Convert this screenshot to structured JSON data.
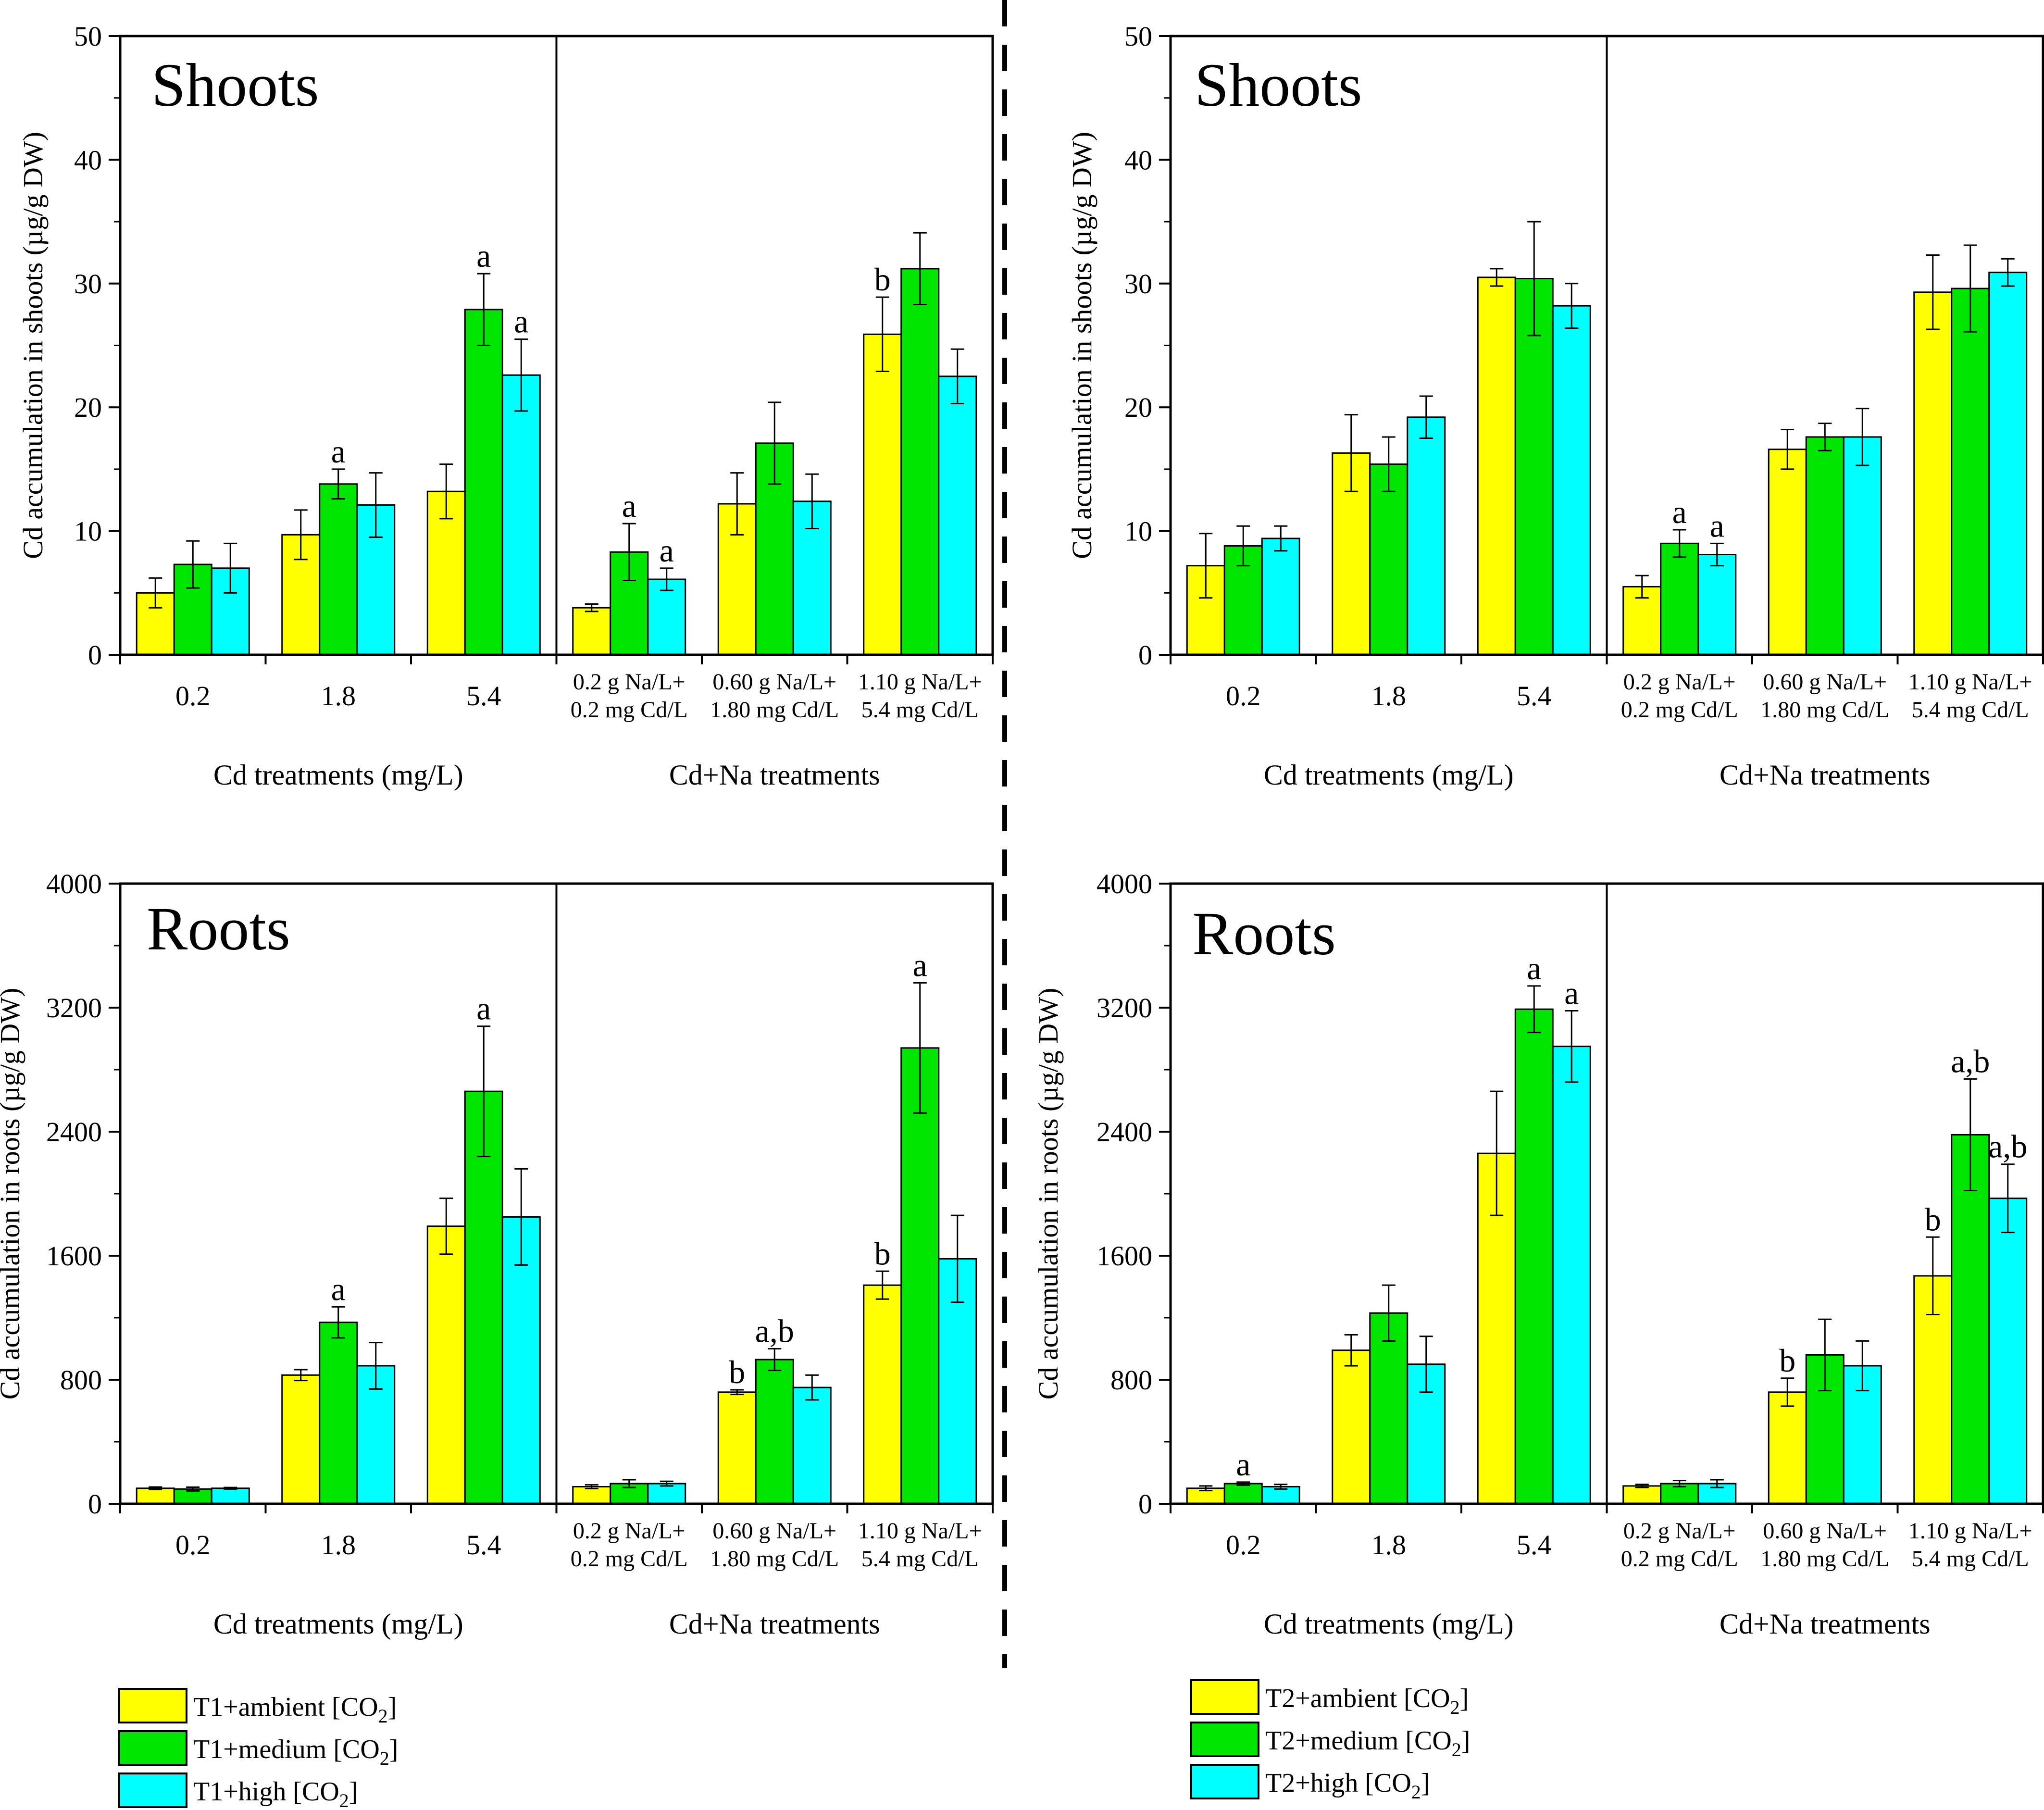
{
  "chart_data": [
    {
      "type": "bar",
      "panel": "T1 shoots",
      "title": "Shoots",
      "ylabel": "Cd accumulation in shoots (µg/g DW)",
      "ylim": [
        0,
        50
      ],
      "yticks": [
        0,
        10,
        20,
        30,
        40,
        50
      ],
      "groups": [
        {
          "label": "Cd treatments (mg/L)",
          "categories": [
            [
              "0.2"
            ],
            [
              "1.8"
            ],
            [
              "5.4"
            ]
          ]
        },
        {
          "label": "Cd+Na treatments",
          "categories": [
            [
              "0.2 g Na/L+",
              "0.2 mg Cd/L"
            ],
            [
              "0.60 g Na/L+",
              "1.80 mg Cd/L"
            ],
            [
              "1.10 g Na/L+",
              "5.4 mg Cd/L"
            ]
          ]
        }
      ],
      "series": [
        {
          "name": "T1+ambient [CO2]",
          "color": "#ffff00",
          "values": [
            5.0,
            9.7,
            13.2,
            3.8,
            12.2,
            25.9
          ],
          "errors": [
            1.2,
            2.0,
            2.2,
            0.3,
            2.5,
            3.0
          ],
          "labels": [
            "",
            "",
            "",
            "",
            "",
            "b"
          ]
        },
        {
          "name": "T1+medium [CO2]",
          "color": "#00e600",
          "values": [
            7.3,
            13.8,
            27.9,
            8.3,
            17.1,
            31.2
          ],
          "errors": [
            1.9,
            1.2,
            2.9,
            2.3,
            3.3,
            2.9
          ],
          "labels": [
            "",
            "a",
            "a",
            "a",
            "",
            ""
          ]
        },
        {
          "name": "T1+high [CO2]",
          "color": "#00ffff",
          "values": [
            7.0,
            12.1,
            22.6,
            6.1,
            12.4,
            22.5
          ],
          "errors": [
            2.0,
            2.6,
            2.9,
            0.9,
            2.2,
            2.2
          ],
          "labels": [
            "",
            "",
            "a",
            "a",
            "",
            ""
          ]
        }
      ]
    },
    {
      "type": "bar",
      "panel": "T2 shoots",
      "title": "Shoots",
      "ylabel": "Cd accumulation in shoots (µg/g DW)",
      "ylim": [
        0,
        50
      ],
      "yticks": [
        0,
        10,
        20,
        30,
        40,
        50
      ],
      "groups": [
        {
          "label": "Cd treatments (mg/L)",
          "categories": [
            [
              "0.2"
            ],
            [
              "1.8"
            ],
            [
              "5.4"
            ]
          ]
        },
        {
          "label": "Cd+Na treatments",
          "categories": [
            [
              "0.2 g Na/L+",
              "0.2 mg Cd/L"
            ],
            [
              "0.60 g Na/L+",
              "1.80 mg Cd/L"
            ],
            [
              "1.10 g Na/L+",
              "5.4 mg Cd/L"
            ]
          ]
        }
      ],
      "series": [
        {
          "name": "T2+ambient [CO2]",
          "color": "#ffff00",
          "values": [
            7.2,
            16.3,
            30.5,
            5.5,
            16.6,
            29.3
          ],
          "errors": [
            2.6,
            3.1,
            0.7,
            0.9,
            1.6,
            3.0
          ],
          "labels": [
            "",
            "",
            "",
            "",
            "",
            ""
          ]
        },
        {
          "name": "T2+medium [CO2]",
          "color": "#00e600",
          "values": [
            8.8,
            15.4,
            30.4,
            9.0,
            17.6,
            29.6
          ],
          "errors": [
            1.6,
            2.2,
            4.6,
            1.1,
            1.1,
            3.5
          ],
          "labels": [
            "",
            "",
            "",
            "a",
            "",
            ""
          ]
        },
        {
          "name": "T2+high [CO2]",
          "color": "#00ffff",
          "values": [
            9.4,
            19.2,
            28.2,
            8.1,
            17.6,
            30.9
          ],
          "errors": [
            1.0,
            1.7,
            1.8,
            0.9,
            2.3,
            1.1
          ],
          "labels": [
            "",
            "",
            "",
            "a",
            "",
            ""
          ]
        }
      ]
    },
    {
      "type": "bar",
      "panel": "T1 roots",
      "title": "Roots",
      "ylabel": "Cd accumulation in roots (µg/g DW)",
      "ylim": [
        0,
        4000
      ],
      "yticks": [
        0,
        800,
        1600,
        2400,
        3200,
        4000
      ],
      "groups": [
        {
          "label": "Cd treatments (mg/L)",
          "categories": [
            [
              "0.2"
            ],
            [
              "1.8"
            ],
            [
              "5.4"
            ]
          ]
        },
        {
          "label": "Cd+Na treatments",
          "categories": [
            [
              "0.2 g Na/L+",
              "0.2 mg Cd/L"
            ],
            [
              "0.60 g Na/L+",
              "1.80 mg Cd/L"
            ],
            [
              "1.10 g Na/L+",
              "5.4 mg Cd/L"
            ]
          ]
        }
      ],
      "series": [
        {
          "name": "T1+ambient [CO2]",
          "color": "#ffff00",
          "values": [
            100,
            830,
            1790,
            110,
            720,
            1410
          ],
          "errors": [
            8,
            35,
            180,
            12,
            15,
            90
          ],
          "labels": [
            "",
            "",
            "",
            "",
            "b",
            "b"
          ]
        },
        {
          "name": "T1+medium [CO2]",
          "color": "#00e600",
          "values": [
            95,
            1170,
            2660,
            130,
            930,
            2940
          ],
          "errors": [
            12,
            100,
            420,
            25,
            70,
            420
          ],
          "labels": [
            "",
            "a",
            "a",
            "",
            "a,b",
            "a"
          ]
        },
        {
          "name": "T1+high [CO2]",
          "color": "#00ffff",
          "values": [
            100,
            890,
            1850,
            130,
            750,
            1580
          ],
          "errors": [
            5,
            150,
            310,
            15,
            80,
            280
          ],
          "labels": [
            "",
            "",
            "",
            "",
            "",
            ""
          ]
        }
      ]
    },
    {
      "type": "bar",
      "panel": "T2 roots",
      "title": "Roots",
      "ylabel": "Cd accumulation in roots (µg/g DW)",
      "ylim": [
        0,
        4000
      ],
      "yticks": [
        0,
        800,
        1600,
        2400,
        3200,
        4000
      ],
      "groups": [
        {
          "label": "Cd treatments (mg/L)",
          "categories": [
            [
              "0.2"
            ],
            [
              "1.8"
            ],
            [
              "5.4"
            ]
          ]
        },
        {
          "label": "Cd+Na treatments",
          "categories": [
            [
              "0.2 g Na/L+",
              "0.2 mg Cd/L"
            ],
            [
              "0.60 g Na/L+",
              "1.80 mg Cd/L"
            ],
            [
              "1.10 g Na/L+",
              "5.4 mg Cd/L"
            ]
          ]
        }
      ],
      "series": [
        {
          "name": "T2+ambient [CO2]",
          "color": "#ffff00",
          "values": [
            100,
            990,
            2260,
            115,
            720,
            1470
          ],
          "errors": [
            15,
            100,
            400,
            10,
            90,
            250
          ],
          "labels": [
            "",
            "",
            "",
            "",
            "b",
            "b"
          ]
        },
        {
          "name": "T2+medium [CO2]",
          "color": "#00e600",
          "values": [
            130,
            1230,
            3190,
            130,
            960,
            2380
          ],
          "errors": [
            10,
            180,
            150,
            20,
            230,
            360
          ],
          "labels": [
            "a",
            "",
            "a",
            "",
            "",
            "a,b"
          ]
        },
        {
          "name": "T2+high [CO2]",
          "color": "#00ffff",
          "values": [
            110,
            900,
            2950,
            130,
            890,
            1970
          ],
          "errors": [
            15,
            180,
            230,
            25,
            160,
            220
          ],
          "labels": [
            "",
            "",
            "a",
            "",
            "",
            "a,b"
          ]
        }
      ]
    }
  ],
  "legends": [
    {
      "entries": [
        {
          "text": "T1+ambient [CO",
          "sub": "2",
          "end": "]",
          "color": "#ffff00"
        },
        {
          "text": "T1+medium [CO",
          "sub": "2",
          "end": "]",
          "color": "#00e600"
        },
        {
          "text": "T1+high [CO",
          "sub": "2",
          "end": "]",
          "color": "#00ffff"
        }
      ]
    },
    {
      "entries": [
        {
          "text": "T2+ambient [CO",
          "sub": "2",
          "end": "]",
          "color": "#ffff00"
        },
        {
          "text": "T2+medium [CO",
          "sub": "2",
          "end": "]",
          "color": "#00e600"
        },
        {
          "text": "T2+high [CO",
          "sub": "2",
          "end": "]",
          "color": "#00ffff"
        }
      ]
    }
  ]
}
